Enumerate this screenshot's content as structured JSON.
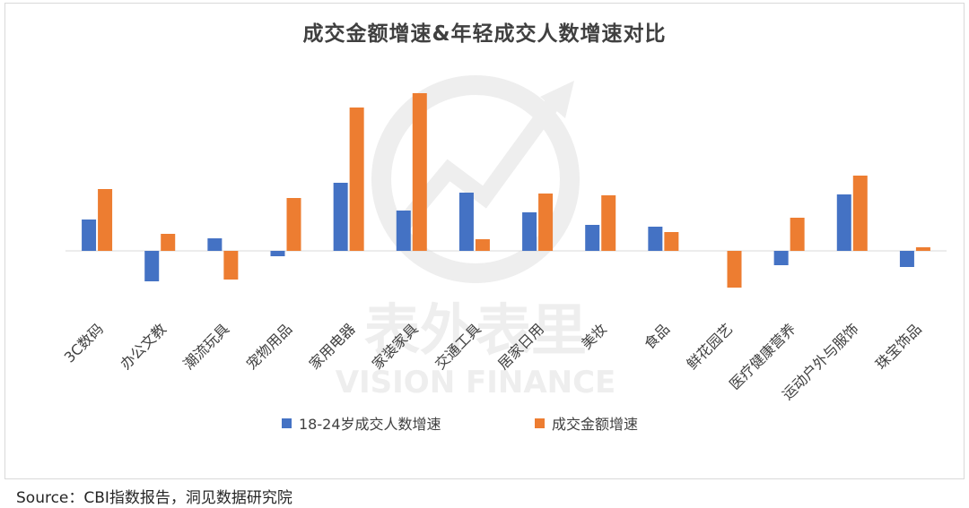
{
  "title": "成交金额增速&年轻成交人数增速对比",
  "source": "Source：CBI指数报告，洞见数据研究院",
  "watermark": {
    "cn": "表外表里",
    "en": "VISION FINANCE"
  },
  "colors": {
    "series1": "#4472c4",
    "series2": "#ed7d31",
    "axis": "#d9d9d9",
    "label": "#404040"
  },
  "chart_data": {
    "type": "bar",
    "title": "成交金额增速&年轻成交人数增速对比",
    "xlabel": "",
    "ylabel": "",
    "y_axis_shown": false,
    "grid": false,
    "legend_position": "bottom",
    "ylim": [
      -42,
      178
    ],
    "categories": [
      "3C数码",
      "办公文教",
      "潮流玩具",
      "宠物用品",
      "家用电器",
      "家装家具",
      "交通工具",
      "居家日用",
      "美妆",
      "食品",
      "鲜花园艺",
      "医疗健康营养",
      "运动户外与服饰",
      "珠宝饰品"
    ],
    "series": [
      {
        "name": "18-24岁成交人数增速",
        "values": [
          35,
          -34,
          14,
          -6,
          76,
          45,
          65,
          43,
          29,
          27,
          0,
          -16,
          63,
          -18
        ]
      },
      {
        "name": "成交金额增速",
        "values": [
          69,
          19,
          -32,
          59,
          160,
          176,
          13,
          64,
          62,
          21,
          -41,
          37,
          84,
          4
        ]
      }
    ]
  }
}
